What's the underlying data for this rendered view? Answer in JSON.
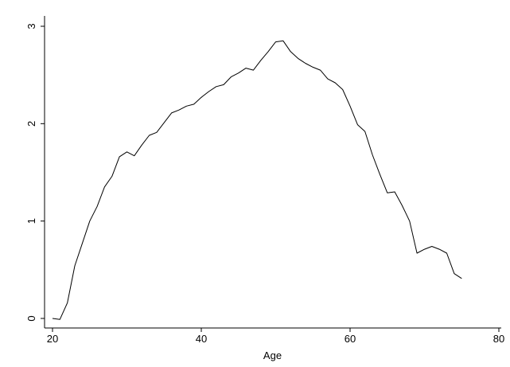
{
  "chart_data": {
    "type": "line",
    "title": "",
    "xlabel": "Age",
    "ylabel": "",
    "xlim": [
      20,
      80
    ],
    "ylim": [
      0,
      3
    ],
    "xticks": [
      20,
      40,
      60,
      80
    ],
    "yticks": [
      0,
      1,
      2,
      3
    ],
    "xtick_labels": [
      "20",
      "40",
      "60",
      "80"
    ],
    "ytick_labels": [
      "0",
      "1",
      "2",
      "3"
    ],
    "grid": false,
    "legend": "none",
    "line_color": "#000000",
    "series": [
      {
        "x": [
          20,
          21,
          22,
          23,
          24,
          25,
          26,
          27,
          28,
          29,
          30,
          31,
          32,
          33,
          34,
          35,
          36,
          37,
          38,
          39,
          40,
          41,
          42,
          43,
          44,
          45,
          46,
          47,
          48,
          49,
          50,
          51,
          52,
          53,
          54,
          55,
          56,
          57,
          58,
          59,
          60,
          61,
          62,
          63,
          64,
          65,
          66,
          67,
          68,
          69,
          70,
          71,
          72,
          73,
          74,
          75
        ],
        "values": [
          0.0,
          -0.01,
          0.16,
          0.54,
          0.77,
          1.0,
          1.15,
          1.35,
          1.46,
          1.66,
          1.71,
          1.67,
          1.78,
          1.88,
          1.91,
          2.01,
          2.11,
          2.14,
          2.18,
          2.2,
          2.27,
          2.33,
          2.38,
          2.4,
          2.48,
          2.52,
          2.57,
          2.55,
          2.65,
          2.74,
          2.84,
          2.85,
          2.74,
          2.67,
          2.62,
          2.58,
          2.55,
          2.46,
          2.42,
          2.35,
          2.18,
          1.99,
          1.92,
          1.68,
          1.48,
          1.29,
          1.3,
          1.16,
          1.0,
          0.67,
          0.71,
          0.74,
          0.71,
          0.67,
          0.46,
          0.41
        ]
      }
    ]
  }
}
